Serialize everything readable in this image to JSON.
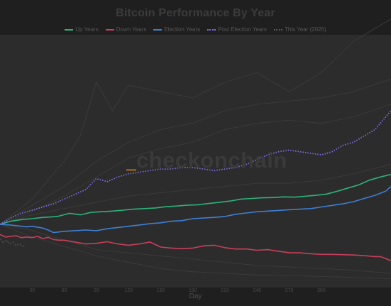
{
  "chart_data": {
    "type": "line",
    "title": "Bitcoin Performance By Year",
    "xlabel": "Day",
    "ylabel": "",
    "xlim": [
      0,
      365
    ],
    "ylim": [
      -2,
      6
    ],
    "x_ticks": [
      30,
      60,
      90,
      120,
      150,
      180,
      210,
      240,
      270,
      300
    ],
    "grid": false,
    "legend_position": "top",
    "watermark": "checkonchain",
    "series": [
      {
        "name": "Up Years",
        "color": "#2db37a",
        "style": "solid",
        "width": 1.6,
        "x": [
          0,
          10,
          20,
          30,
          40,
          50,
          55,
          65,
          75,
          85,
          95,
          105,
          115,
          125,
          135,
          145,
          155,
          165,
          175,
          185,
          195,
          205,
          215,
          225,
          235,
          245,
          255,
          265,
          275,
          285,
          295,
          305,
          315,
          325,
          335,
          345,
          355,
          365
        ],
        "y": [
          0.0,
          0.1,
          0.15,
          0.18,
          0.22,
          0.24,
          0.26,
          0.35,
          0.3,
          0.38,
          0.4,
          0.42,
          0.45,
          0.48,
          0.5,
          0.52,
          0.56,
          0.58,
          0.61,
          0.62,
          0.66,
          0.7,
          0.74,
          0.8,
          0.82,
          0.84,
          0.85,
          0.87,
          0.86,
          0.89,
          0.92,
          0.96,
          1.05,
          1.15,
          1.25,
          1.4,
          1.5,
          1.58
        ]
      },
      {
        "name": "Down Years",
        "color": "#c5405a",
        "style": "solid",
        "width": 1.6,
        "x": [
          0,
          5,
          10,
          15,
          20,
          25,
          30,
          35,
          40,
          45,
          50,
          55,
          60,
          70,
          80,
          90,
          100,
          110,
          120,
          130,
          140,
          150,
          160,
          170,
          180,
          190,
          200,
          210,
          220,
          230,
          240,
          250,
          260,
          270,
          280,
          290,
          300,
          310,
          320,
          330,
          340,
          350,
          355,
          360,
          365
        ],
        "y": [
          -0.32,
          -0.4,
          -0.38,
          -0.36,
          -0.42,
          -0.4,
          -0.42,
          -0.38,
          -0.45,
          -0.41,
          -0.48,
          -0.5,
          -0.5,
          -0.56,
          -0.62,
          -0.6,
          -0.55,
          -0.62,
          -0.66,
          -0.62,
          -0.56,
          -0.72,
          -0.75,
          -0.77,
          -0.75,
          -0.68,
          -0.66,
          -0.74,
          -0.78,
          -0.78,
          -0.82,
          -0.8,
          -0.85,
          -0.9,
          -0.9,
          -0.93,
          -0.95,
          -0.95,
          -0.96,
          -0.97,
          -0.99,
          -1.02,
          -1.02,
          -1.08,
          -1.15
        ]
      },
      {
        "name": "Election Years",
        "color": "#3f7fd0",
        "style": "solid",
        "width": 1.6,
        "x": [
          0,
          10,
          20,
          25,
          30,
          40,
          45,
          50,
          60,
          70,
          80,
          90,
          100,
          110,
          120,
          130,
          140,
          150,
          160,
          170,
          180,
          190,
          200,
          210,
          220,
          230,
          240,
          250,
          260,
          270,
          280,
          290,
          300,
          310,
          320,
          330,
          340,
          350,
          360,
          365
        ],
        "y": [
          0.0,
          -0.02,
          -0.06,
          -0.08,
          -0.06,
          -0.12,
          -0.18,
          -0.26,
          -0.22,
          -0.2,
          -0.18,
          -0.2,
          -0.14,
          -0.1,
          -0.06,
          -0.02,
          0.02,
          0.05,
          0.1,
          0.12,
          0.18,
          0.2,
          0.22,
          0.25,
          0.32,
          0.36,
          0.4,
          0.42,
          0.44,
          0.46,
          0.48,
          0.5,
          0.55,
          0.6,
          0.65,
          0.72,
          0.82,
          0.92,
          1.05,
          1.2
        ]
      },
      {
        "name": "Post Election Years",
        "color": "#7c6ce0",
        "style": "dotted",
        "width": 1.8,
        "x": [
          0,
          10,
          20,
          30,
          40,
          50,
          60,
          70,
          80,
          90,
          100,
          110,
          120,
          130,
          140,
          150,
          160,
          170,
          180,
          190,
          200,
          210,
          220,
          230,
          240,
          250,
          260,
          270,
          280,
          290,
          300,
          310,
          320,
          330,
          340,
          350,
          360,
          365
        ],
        "y": [
          0.0,
          0.2,
          0.35,
          0.45,
          0.55,
          0.65,
          0.8,
          0.95,
          1.1,
          1.45,
          1.35,
          1.5,
          1.6,
          1.65,
          1.7,
          1.75,
          1.75,
          1.8,
          1.8,
          1.75,
          1.7,
          1.75,
          1.8,
          1.9,
          2.05,
          2.2,
          2.3,
          2.35,
          2.3,
          2.25,
          2.2,
          2.3,
          2.5,
          2.6,
          2.8,
          3.0,
          3.4,
          3.6
        ]
      },
      {
        "name": "This Year (2026)",
        "color": "#555555",
        "style": "dashed",
        "width": 1.0,
        "x": [
          0,
          3,
          6,
          9,
          12,
          15,
          18,
          21,
          24
        ],
        "y": [
          -0.45,
          -0.58,
          -0.5,
          -0.62,
          -0.55,
          -0.68,
          -0.6,
          -0.7,
          -0.66
        ]
      }
    ],
    "background_series": [
      {
        "x": [
          0,
          30,
          60,
          75,
          90,
          105,
          120,
          150,
          180,
          210,
          240,
          270,
          300,
          330,
          365
        ],
        "y": [
          0.0,
          0.8,
          2.0,
          2.8,
          4.5,
          3.6,
          4.4,
          4.2,
          4.0,
          4.5,
          4.8,
          4.2,
          4.8,
          5.8,
          6.5
        ]
      },
      {
        "x": [
          0,
          30,
          60,
          90,
          120,
          150,
          180,
          210,
          240,
          270,
          300,
          330,
          365
        ],
        "y": [
          0.0,
          0.6,
          1.2,
          2.0,
          2.6,
          3.0,
          3.2,
          3.6,
          3.8,
          3.9,
          4.0,
          4.2,
          4.6
        ]
      },
      {
        "x": [
          0,
          30,
          60,
          90,
          120,
          150,
          180,
          210,
          240,
          270,
          300,
          330,
          365
        ],
        "y": [
          0.0,
          0.4,
          0.9,
          1.5,
          2.1,
          2.4,
          2.6,
          3.0,
          3.2,
          3.3,
          3.2,
          3.4,
          3.8
        ]
      },
      {
        "x": [
          0,
          30,
          60,
          90,
          120,
          150,
          180,
          210,
          240,
          270,
          300,
          330,
          365
        ],
        "y": [
          0.0,
          0.3,
          0.5,
          0.7,
          0.9,
          1.0,
          1.1,
          1.2,
          1.3,
          1.3,
          1.4,
          1.6,
          1.9
        ]
      },
      {
        "x": [
          0,
          30,
          60,
          90,
          120,
          150,
          180,
          210,
          240,
          270,
          300,
          330,
          365
        ],
        "y": [
          0.0,
          -0.2,
          -0.5,
          -0.8,
          -0.9,
          -1.0,
          -1.1,
          -1.2,
          -1.3,
          -1.35,
          -1.4,
          -1.45,
          -1.55
        ]
      },
      {
        "x": [
          0,
          30,
          60,
          90,
          120,
          150,
          180,
          210,
          240,
          270,
          300,
          330,
          365
        ],
        "y": [
          0.0,
          -0.4,
          -0.7,
          -1.0,
          -1.2,
          -1.4,
          -1.5,
          -1.55,
          -1.6,
          -1.62,
          -1.65,
          -1.68,
          -1.72
        ]
      }
    ]
  }
}
